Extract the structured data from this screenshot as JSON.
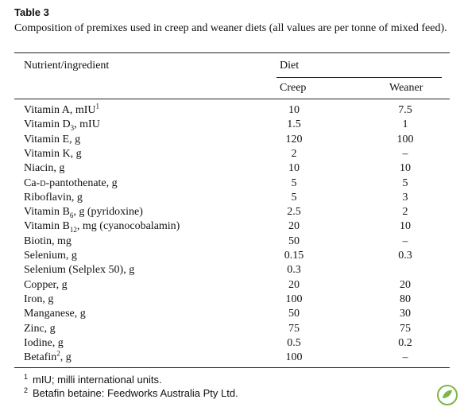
{
  "label": "Table 3",
  "caption": "Composition of premixes used in creep and weaner diets (all values are per tonne of mixed feed).",
  "table": {
    "header": {
      "nutrient": "Nutrient/ingredient",
      "group": "Diet",
      "creep": "Creep",
      "weaner": "Weaner"
    },
    "rows": [
      {
        "label": [
          "Vitamin A, mIU",
          {
            "sup": "1"
          }
        ],
        "creep": 10,
        "weaner": 7.5
      },
      {
        "label": [
          "Vitamin D",
          {
            "sub": "3"
          },
          ", mIU"
        ],
        "creep": 1.5,
        "weaner": 1
      },
      {
        "label": [
          "Vitamin E, g"
        ],
        "creep": 120,
        "weaner": 100
      },
      {
        "label": [
          "Vitamin K, g"
        ],
        "creep": 2,
        "weaner": "–"
      },
      {
        "label": [
          "Niacin, g"
        ],
        "creep": 10,
        "weaner": 10
      },
      {
        "label": [
          "Ca-",
          {
            "sc": "d"
          },
          "-pantothenate, g"
        ],
        "creep": 5,
        "weaner": 5
      },
      {
        "label": [
          "Riboflavin, g"
        ],
        "creep": 5,
        "weaner": 3
      },
      {
        "label": [
          "Vitamin B",
          {
            "sub": "6"
          },
          ", g (pyridoxine)"
        ],
        "creep": 2.5,
        "weaner": 2
      },
      {
        "label": [
          "Vitamin B",
          {
            "sub": "12"
          },
          ", mg (cyanocobalamin)"
        ],
        "creep": 20,
        "weaner": 10
      },
      {
        "label": [
          "Biotin, mg"
        ],
        "creep": 50,
        "weaner": "–"
      },
      {
        "label": [
          "Selenium, g"
        ],
        "creep": 0.15,
        "weaner": 0.3
      },
      {
        "label": [
          "Selenium (Selplex 50), g"
        ],
        "creep": 0.3,
        "weaner": null
      },
      {
        "label": [
          "Copper, g"
        ],
        "creep": 20,
        "weaner": 20
      },
      {
        "label": [
          "Iron, g"
        ],
        "creep": 100,
        "weaner": 80
      },
      {
        "label": [
          "Manganese, g"
        ],
        "creep": 50,
        "weaner": 30
      },
      {
        "label": [
          "Zinc, g"
        ],
        "creep": 75,
        "weaner": 75
      },
      {
        "label": [
          "Iodine, g"
        ],
        "creep": 0.5,
        "weaner": 0.2
      },
      {
        "label": [
          "Betafin",
          {
            "sup": "2"
          },
          ", g"
        ],
        "creep": 100,
        "weaner": "–"
      }
    ]
  },
  "footnotes": [
    {
      "mark": "1",
      "text": "mIU; milli international units."
    },
    {
      "mark": "2",
      "text": "Betafin betaine: Feedworks Australia Pty Ltd."
    }
  ]
}
